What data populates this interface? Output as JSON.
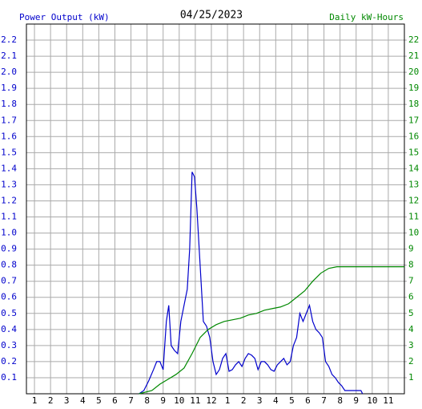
{
  "chart_data": {
    "type": "line",
    "title": "04/25/2023",
    "y_label": "Power Output (kW)",
    "y2_label": "Daily kW-Hours",
    "xlim": [
      0.5,
      24
    ],
    "xticks": [
      1,
      2,
      3,
      4,
      5,
      6,
      7,
      8,
      9,
      10,
      11,
      12,
      {
        "value": 13,
        "label": "1"
      },
      {
        "value": 14,
        "label": "2"
      },
      {
        "value": 15,
        "label": "3"
      },
      {
        "value": 16,
        "label": "4"
      },
      {
        "value": 17,
        "label": "5"
      },
      {
        "value": 18,
        "label": "6"
      },
      {
        "value": 19,
        "label": "7"
      },
      {
        "value": 20,
        "label": "8"
      },
      {
        "value": 21,
        "label": "9"
      },
      {
        "value": 22,
        "label": "10"
      },
      {
        "value": 23,
        "label": "11"
      }
    ],
    "ylim": [
      0,
      2.3
    ],
    "yticks": [
      0.1,
      0.2,
      0.3,
      0.4,
      0.5,
      0.6,
      0.7,
      0.8,
      0.9,
      {
        "value": 1,
        "label": "1.0"
      },
      1.1,
      1.2,
      1.3,
      1.4,
      1.5,
      1.6,
      1.7,
      1.8,
      1.9,
      {
        "value": 2,
        "label": "2.0"
      },
      2.1,
      2.2
    ],
    "y2lim": [
      0,
      23
    ],
    "y2ticks": [
      1,
      2,
      3,
      4,
      5,
      6,
      7,
      8,
      9,
      10,
      11,
      12,
      13,
      14,
      15,
      16,
      17,
      18,
      19,
      20,
      21,
      22
    ],
    "grid": true,
    "series": [
      {
        "name": "Power Output (kW)",
        "color": "#0000cc",
        "x": [
          7.5,
          7.8,
          8.1,
          8.4,
          8.6,
          8.8,
          9.0,
          9.2,
          9.35,
          9.5,
          9.7,
          9.9,
          10.1,
          10.3,
          10.5,
          10.65,
          10.8,
          10.95,
          11.1,
          11.3,
          11.5,
          11.7,
          11.9,
          12.1,
          12.3,
          12.5,
          12.7,
          12.9,
          13.1,
          13.3,
          13.5,
          13.7,
          13.9,
          14.1,
          14.3,
          14.5,
          14.7,
          14.9,
          15.1,
          15.3,
          15.5,
          15.7,
          15.9,
          16.1,
          16.3,
          16.5,
          16.7,
          16.9,
          17.1,
          17.3,
          17.5,
          17.7,
          17.9,
          18.1,
          18.3,
          18.5,
          18.7,
          18.9,
          19.1,
          19.3,
          19.5,
          19.7,
          19.9,
          20.1,
          20.3,
          20.8,
          21.3,
          21.4
        ],
        "values": [
          0,
          0.02,
          0.08,
          0.15,
          0.2,
          0.2,
          0.15,
          0.45,
          0.55,
          0.3,
          0.27,
          0.25,
          0.45,
          0.55,
          0.65,
          0.9,
          1.38,
          1.35,
          1.15,
          0.8,
          0.45,
          0.42,
          0.35,
          0.2,
          0.12,
          0.15,
          0.22,
          0.25,
          0.14,
          0.15,
          0.18,
          0.2,
          0.17,
          0.22,
          0.25,
          0.24,
          0.22,
          0.15,
          0.2,
          0.2,
          0.18,
          0.15,
          0.14,
          0.18,
          0.2,
          0.22,
          0.18,
          0.2,
          0.3,
          0.35,
          0.5,
          0.45,
          0.5,
          0.55,
          0.45,
          0.4,
          0.38,
          0.35,
          0.2,
          0.17,
          0.12,
          0.1,
          0.07,
          0.05,
          0.02,
          0.02,
          0.02,
          0
        ]
      },
      {
        "name": "Daily kW-Hours",
        "color": "#008800",
        "axis": "y2",
        "x": [
          7.5,
          8.3,
          8.8,
          9.3,
          9.8,
          10.3,
          10.8,
          11.3,
          11.8,
          12.3,
          12.8,
          13.3,
          13.8,
          14.3,
          14.8,
          15.3,
          15.8,
          16.3,
          16.8,
          17.3,
          17.8,
          18.3,
          18.8,
          19.3,
          19.8,
          20.3,
          24
        ],
        "values": [
          0,
          0.2,
          0.6,
          0.9,
          1.2,
          1.6,
          2.5,
          3.5,
          4.0,
          4.3,
          4.5,
          4.6,
          4.7,
          4.9,
          5.0,
          5.2,
          5.3,
          5.4,
          5.6,
          6.0,
          6.4,
          7.0,
          7.5,
          7.8,
          7.9,
          7.9,
          7.9
        ]
      }
    ]
  }
}
